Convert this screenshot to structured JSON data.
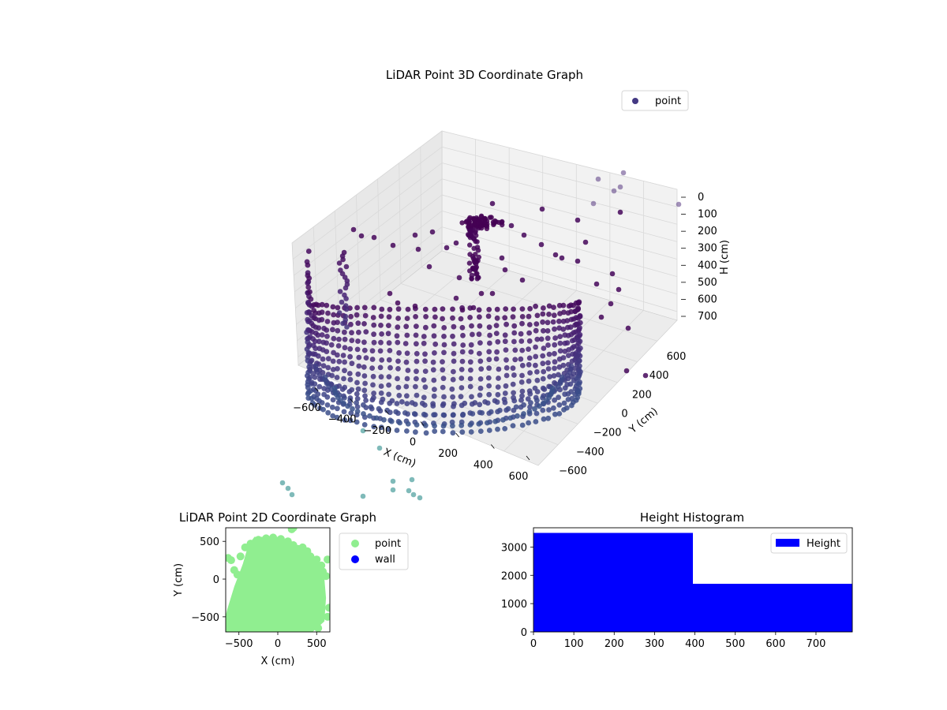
{
  "chart_data": [
    {
      "type": "scatter3d",
      "title": "LiDAR Point 3D Coordinate Graph",
      "xlabel": "X (cm)",
      "ylabel": "Y (cm)",
      "zlabel": "H (cm)",
      "xlim": [
        -700,
        700
      ],
      "ylim": [
        -700,
        700
      ],
      "zlim": [
        0,
        750
      ],
      "z_inverted": true,
      "x_ticks": [
        "−600",
        "−400",
        "−200",
        "0",
        "200",
        "400",
        "600"
      ],
      "y_ticks": [
        "600",
        "400",
        "200",
        "0",
        "−200",
        "−400",
        "−600"
      ],
      "z_ticks": [
        "0",
        "100",
        "200",
        "300",
        "400",
        "500",
        "600",
        "700"
      ],
      "grid": true,
      "legend": "top-right",
      "colormap": "viridis",
      "series": [
        {
          "name": "point",
          "legend_color": "#443983",
          "shape": "cylinder-wall",
          "radius": 560,
          "arc_deg": [
            180,
            360
          ],
          "height_range": [
            0,
            780
          ],
          "outliers": [
            {
              "x": 300,
              "y": 650,
              "z": 50
            },
            {
              "x": 350,
              "y": 640,
              "z": 60
            },
            {
              "x": 420,
              "y": 600,
              "z": 40
            },
            {
              "x": 500,
              "y": 560,
              "z": 80
            },
            {
              "x": 650,
              "y": 300,
              "z": 100
            },
            {
              "x": 600,
              "y": 150,
              "z": 200
            },
            {
              "x": 480,
              "y": 60,
              "z": 300
            },
            {
              "x": 360,
              "y": 0,
              "z": 380
            },
            {
              "x": 250,
              "y": -30,
              "z": 420
            },
            {
              "x": 150,
              "y": 500,
              "z": 180
            },
            {
              "x": 0,
              "y": 560,
              "z": 120
            },
            {
              "x": -150,
              "y": 560,
              "z": 180
            },
            {
              "x": -300,
              "y": 560,
              "z": 220
            },
            {
              "x": -450,
              "y": 530,
              "z": 280
            },
            {
              "x": -560,
              "y": 450,
              "z": 300
            },
            {
              "x": -280,
              "y": 300,
              "z": 450
            },
            {
              "x": -120,
              "y": 200,
              "z": 420
            },
            {
              "x": 120,
              "y": 300,
              "z": 330
            },
            {
              "x": 450,
              "y": 500,
              "z": 130
            }
          ],
          "below_points": [
            {
              "x": -700,
              "y": -700,
              "z": 1000
            },
            {
              "x": -680,
              "y": -650,
              "z": 1020
            },
            {
              "x": -660,
              "y": -680,
              "z": 1050
            },
            {
              "x": -300,
              "y": -500,
              "z": 1100
            },
            {
              "x": -120,
              "y": -600,
              "z": 1050
            },
            {
              "x": -100,
              "y": -620,
              "z": 1100
            },
            {
              "x": -20,
              "y": -600,
              "z": 1080
            },
            {
              "x": 10,
              "y": -650,
              "z": 1100
            },
            {
              "x": 20,
              "y": -700,
              "z": 1130
            },
            {
              "x": 40,
              "y": -660,
              "z": 1120
            },
            {
              "x": 60,
              "y": -640,
              "z": 1140
            },
            {
              "x": -420,
              "y": -460,
              "z": 900
            }
          ]
        }
      ]
    },
    {
      "type": "scatter",
      "title": "LiDAR Point 2D Coordinate Graph",
      "xlabel": "X (cm)",
      "ylabel": "Y (cm)",
      "xlim": [
        -670,
        670
      ],
      "ylim": [
        -700,
        680
      ],
      "x_ticks": [
        {
          "value": -500,
          "label": "−500"
        },
        {
          "value": 0,
          "label": "0"
        },
        {
          "value": 500,
          "label": "500"
        }
      ],
      "y_ticks": [
        {
          "value": 500,
          "label": "500"
        },
        {
          "value": 0,
          "label": "0"
        },
        {
          "value": -500,
          "label": "−500"
        }
      ],
      "legend": "outside-right",
      "series": [
        {
          "name": "point",
          "color": "#90ee90"
        },
        {
          "name": "wall",
          "color": "#0000ff"
        }
      ],
      "blob_outline": [
        [
          -650,
          -400
        ],
        [
          -560,
          -100
        ],
        [
          -450,
          200
        ],
        [
          -380,
          450
        ],
        [
          -300,
          560
        ],
        [
          -100,
          560
        ],
        [
          0,
          560
        ],
        [
          50,
          540
        ],
        [
          120,
          480
        ],
        [
          240,
          420
        ],
        [
          350,
          380
        ],
        [
          470,
          300
        ],
        [
          560,
          150
        ],
        [
          600,
          0
        ],
        [
          620,
          -250
        ],
        [
          600,
          -560
        ],
        [
          450,
          -700
        ],
        [
          -670,
          -700
        ],
        [
          -670,
          -480
        ]
      ],
      "scatter_points": [
        [
          -640,
          280
        ],
        [
          -600,
          250
        ],
        [
          -560,
          120
        ],
        [
          -520,
          60
        ],
        [
          -480,
          300
        ],
        [
          -420,
          420
        ],
        [
          -350,
          470
        ],
        [
          -250,
          520
        ],
        [
          -150,
          540
        ],
        [
          -60,
          550
        ],
        [
          40,
          530
        ],
        [
          130,
          500
        ],
        [
          200,
          450
        ],
        [
          260,
          400
        ],
        [
          320,
          420
        ],
        [
          380,
          370
        ],
        [
          420,
          300
        ],
        [
          500,
          260
        ],
        [
          560,
          180
        ],
        [
          580,
          100
        ],
        [
          620,
          40
        ],
        [
          640,
          260
        ],
        [
          660,
          -380
        ],
        [
          640,
          -500
        ],
        [
          520,
          -650
        ],
        [
          200,
          680
        ],
        [
          180,
          660
        ]
      ]
    },
    {
      "type": "bar",
      "title": "Height Histogram",
      "legend": "top-right",
      "series": [
        {
          "name": "Height",
          "color": "#0000ff"
        }
      ],
      "bins": [
        {
          "start": 0,
          "end": 395,
          "value": 3500
        },
        {
          "start": 395,
          "end": 790,
          "value": 1700
        }
      ],
      "xlim": [
        0,
        790
      ],
      "ylim": [
        0,
        3680
      ],
      "x_ticks": [
        0,
        100,
        200,
        300,
        400,
        500,
        600,
        700
      ],
      "y_ticks": [
        0,
        1000,
        2000,
        3000
      ]
    }
  ]
}
